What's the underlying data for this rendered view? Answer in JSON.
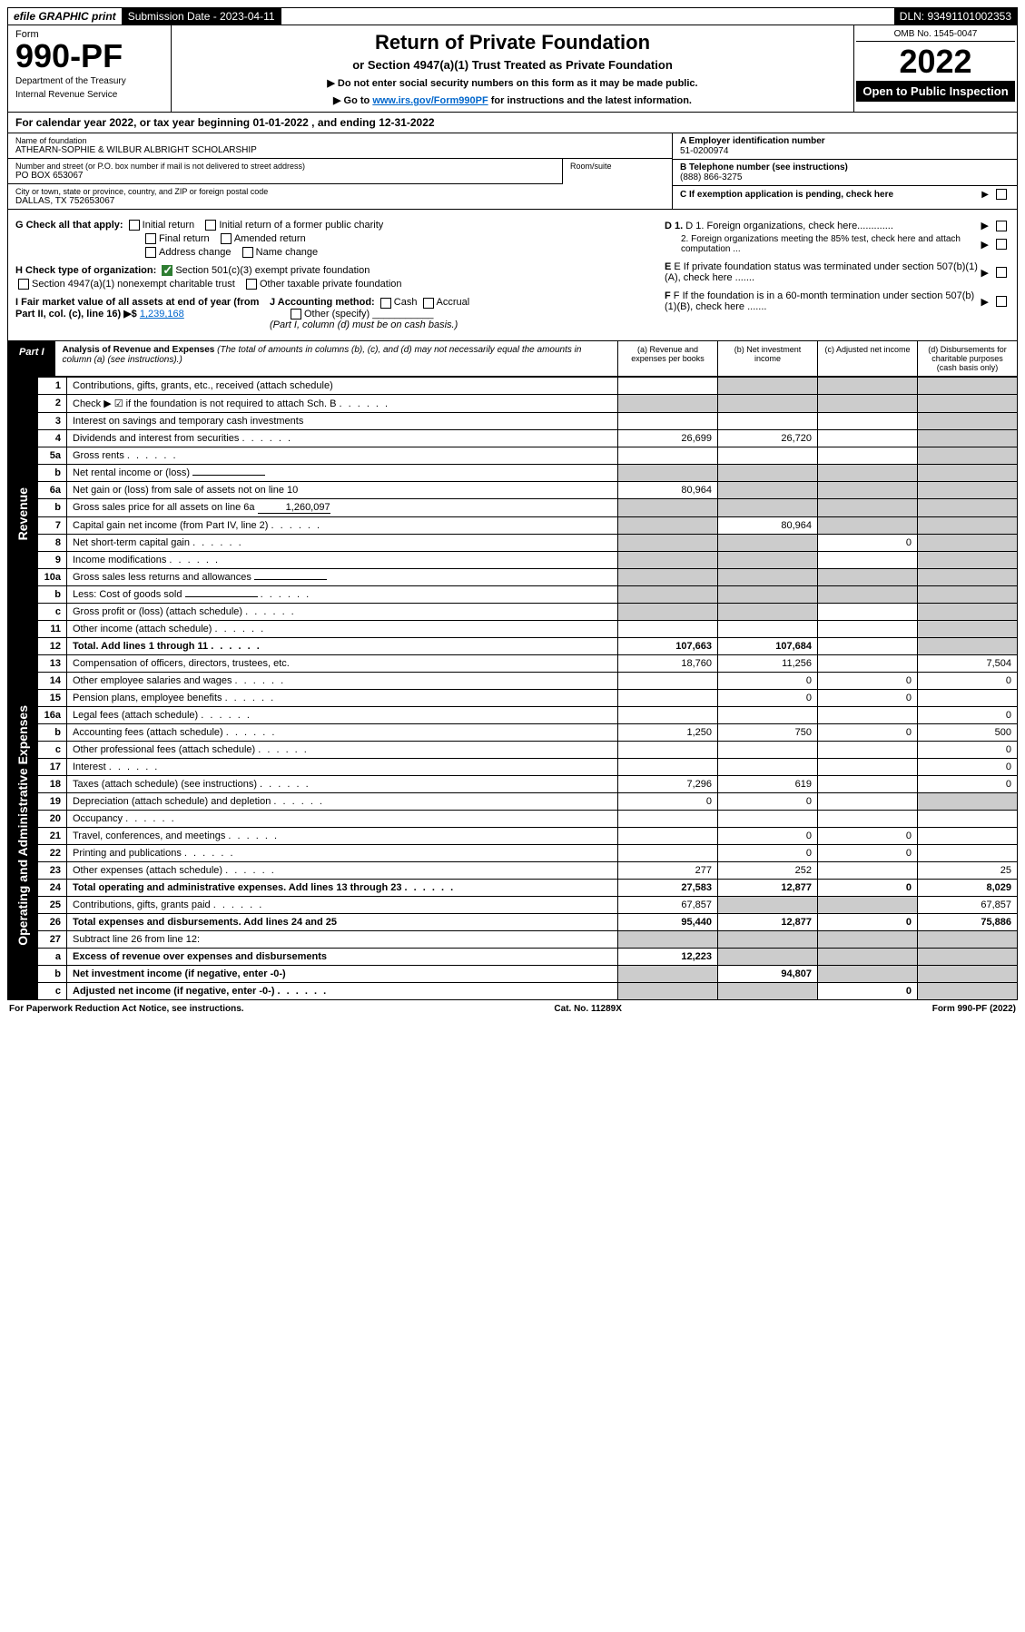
{
  "topbar": {
    "efile_label": "efile GRAPHIC print",
    "submission_label": "Submission Date - 2023-04-11",
    "dln_label": "DLN: 93491101002353"
  },
  "header": {
    "form_word": "Form",
    "form_number": "990-PF",
    "dept1": "Department of the Treasury",
    "dept2": "Internal Revenue Service",
    "title": "Return of Private Foundation",
    "subtitle": "or Section 4947(a)(1) Trust Treated as Private Foundation",
    "instr1": "▶ Do not enter social security numbers on this form as it may be made public.",
    "instr2_pre": "▶ Go to ",
    "instr2_link": "www.irs.gov/Form990PF",
    "instr2_post": " for instructions and the latest information.",
    "omb": "OMB No. 1545-0047",
    "year": "2022",
    "open_pub": "Open to Public Inspection"
  },
  "cal": {
    "text_pre": "For calendar year 2022, or tax year beginning ",
    "begin": "01-01-2022",
    "text_mid": " , and ending ",
    "end": "12-31-2022"
  },
  "info": {
    "name_lbl": "Name of foundation",
    "name_val": "ATHEARN-SOPHIE & WILBUR ALBRIGHT SCHOLARSHIP",
    "addr_lbl": "Number and street (or P.O. box number if mail is not delivered to street address)",
    "addr_val": "PO BOX 653067",
    "room_lbl": "Room/suite",
    "city_lbl": "City or town, state or province, country, and ZIP or foreign postal code",
    "city_val": "DALLAS, TX  752653067",
    "a_lbl": "A Employer identification number",
    "a_val": "51-0200974",
    "b_lbl": "B Telephone number (see instructions)",
    "b_val": "(888) 866-3275",
    "c_lbl": "C If exemption application is pending, check here",
    "d1_lbl": "D 1. Foreign organizations, check here.............",
    "d2_lbl": "2. Foreign organizations meeting the 85% test, check here and attach computation ...",
    "e_lbl": "E If private foundation status was terminated under section 507(b)(1)(A), check here .......",
    "f_lbl": "F If the foundation is in a 60-month termination under section 507(b)(1)(B), check here .......",
    "g_lbl": "G Check all that apply:",
    "g_opts": [
      "Initial return",
      "Initial return of a former public charity",
      "Final return",
      "Amended return",
      "Address change",
      "Name change"
    ],
    "h_lbl": "H Check type of organization:",
    "h_opt1": "Section 501(c)(3) exempt private foundation",
    "h_opt2": "Section 4947(a)(1) nonexempt charitable trust",
    "h_opt3": "Other taxable private foundation",
    "i_lbl": "I Fair market value of all assets at end of year (from Part II, col. (c), line 16) ▶$",
    "i_val": "1,239,168",
    "j_lbl": "J Accounting method:",
    "j_opts": [
      "Cash",
      "Accrual"
    ],
    "j_other": "Other (specify)",
    "j_note": "(Part I, column (d) must be on cash basis.)"
  },
  "part1": {
    "label": "Part I",
    "title": "Analysis of Revenue and Expenses",
    "title_note": " (The total of amounts in columns (b), (c), and (d) may not necessarily equal the amounts in column (a) (see instructions).)",
    "col_a": "(a) Revenue and expenses per books",
    "col_b": "(b) Net investment income",
    "col_c": "(c) Adjusted net income",
    "col_d": "(d) Disbursements for charitable purposes (cash basis only)"
  },
  "vlabels": {
    "revenue": "Revenue",
    "expenses": "Operating and Administrative Expenses"
  },
  "rows": [
    {
      "n": "1",
      "desc": "Contributions, gifts, grants, etc., received (attach schedule)",
      "a": "",
      "b": "shade",
      "c": "shade",
      "d": "shade"
    },
    {
      "n": "2",
      "desc": "Check ▶ ☑ if the foundation is not required to attach Sch. B",
      "a": "shade",
      "b": "shade",
      "c": "shade",
      "d": "shade",
      "dots": true
    },
    {
      "n": "3",
      "desc": "Interest on savings and temporary cash investments",
      "a": "",
      "b": "",
      "c": "",
      "d": "shade"
    },
    {
      "n": "4",
      "desc": "Dividends and interest from securities",
      "a": "26,699",
      "b": "26,720",
      "c": "",
      "d": "shade",
      "dots": true
    },
    {
      "n": "5a",
      "desc": "Gross rents",
      "a": "",
      "b": "",
      "c": "",
      "d": "shade",
      "dots": true
    },
    {
      "n": "b",
      "desc": "Net rental income or (loss)",
      "a": "shade",
      "b": "shade",
      "c": "shade",
      "d": "shade",
      "inline": true
    },
    {
      "n": "6a",
      "desc": "Net gain or (loss) from sale of assets not on line 10",
      "a": "80,964",
      "b": "shade",
      "c": "shade",
      "d": "shade"
    },
    {
      "n": "b",
      "desc": "Gross sales price for all assets on line 6a",
      "a": "shade",
      "b": "shade",
      "c": "shade",
      "d": "shade",
      "inline_val": "1,260,097"
    },
    {
      "n": "7",
      "desc": "Capital gain net income (from Part IV, line 2)",
      "a": "shade",
      "b": "80,964",
      "c": "shade",
      "d": "shade",
      "dots": true
    },
    {
      "n": "8",
      "desc": "Net short-term capital gain",
      "a": "shade",
      "b": "shade",
      "c": "0",
      "d": "shade",
      "dots": true
    },
    {
      "n": "9",
      "desc": "Income modifications",
      "a": "shade",
      "b": "shade",
      "c": "",
      "d": "shade",
      "dots": true
    },
    {
      "n": "10a",
      "desc": "Gross sales less returns and allowances",
      "a": "shade",
      "b": "shade",
      "c": "shade",
      "d": "shade",
      "inline": true
    },
    {
      "n": "b",
      "desc": "Less: Cost of goods sold",
      "a": "shade",
      "b": "shade",
      "c": "shade",
      "d": "shade",
      "inline": true,
      "dots": true
    },
    {
      "n": "c",
      "desc": "Gross profit or (loss) (attach schedule)",
      "a": "shade",
      "b": "shade",
      "c": "",
      "d": "shade",
      "dots": true
    },
    {
      "n": "11",
      "desc": "Other income (attach schedule)",
      "a": "",
      "b": "",
      "c": "",
      "d": "shade",
      "dots": true
    },
    {
      "n": "12",
      "desc": "Total. Add lines 1 through 11",
      "a": "107,663",
      "b": "107,684",
      "c": "",
      "d": "shade",
      "bold": true,
      "dots": true
    },
    {
      "n": "13",
      "desc": "Compensation of officers, directors, trustees, etc.",
      "a": "18,760",
      "b": "11,256",
      "c": "",
      "d": "7,504"
    },
    {
      "n": "14",
      "desc": "Other employee salaries and wages",
      "a": "",
      "b": "0",
      "c": "0",
      "d": "0",
      "dots": true
    },
    {
      "n": "15",
      "desc": "Pension plans, employee benefits",
      "a": "",
      "b": "0",
      "c": "0",
      "d": "",
      "dots": true
    },
    {
      "n": "16a",
      "desc": "Legal fees (attach schedule)",
      "a": "",
      "b": "",
      "c": "",
      "d": "0",
      "dots": true
    },
    {
      "n": "b",
      "desc": "Accounting fees (attach schedule)",
      "a": "1,250",
      "b": "750",
      "c": "0",
      "d": "500",
      "dots": true
    },
    {
      "n": "c",
      "desc": "Other professional fees (attach schedule)",
      "a": "",
      "b": "",
      "c": "",
      "d": "0",
      "dots": true
    },
    {
      "n": "17",
      "desc": "Interest",
      "a": "",
      "b": "",
      "c": "",
      "d": "0",
      "dots": true
    },
    {
      "n": "18",
      "desc": "Taxes (attach schedule) (see instructions)",
      "a": "7,296",
      "b": "619",
      "c": "",
      "d": "0",
      "dots": true
    },
    {
      "n": "19",
      "desc": "Depreciation (attach schedule) and depletion",
      "a": "0",
      "b": "0",
      "c": "",
      "d": "shade",
      "dots": true
    },
    {
      "n": "20",
      "desc": "Occupancy",
      "a": "",
      "b": "",
      "c": "",
      "d": "",
      "dots": true
    },
    {
      "n": "21",
      "desc": "Travel, conferences, and meetings",
      "a": "",
      "b": "0",
      "c": "0",
      "d": "",
      "dots": true
    },
    {
      "n": "22",
      "desc": "Printing and publications",
      "a": "",
      "b": "0",
      "c": "0",
      "d": "",
      "dots": true
    },
    {
      "n": "23",
      "desc": "Other expenses (attach schedule)",
      "a": "277",
      "b": "252",
      "c": "",
      "d": "25",
      "dots": true
    },
    {
      "n": "24",
      "desc": "Total operating and administrative expenses. Add lines 13 through 23",
      "a": "27,583",
      "b": "12,877",
      "c": "0",
      "d": "8,029",
      "bold": true,
      "dots": true
    },
    {
      "n": "25",
      "desc": "Contributions, gifts, grants paid",
      "a": "67,857",
      "b": "shade",
      "c": "shade",
      "d": "67,857",
      "dots": true
    },
    {
      "n": "26",
      "desc": "Total expenses and disbursements. Add lines 24 and 25",
      "a": "95,440",
      "b": "12,877",
      "c": "0",
      "d": "75,886",
      "bold": true
    },
    {
      "n": "27",
      "desc": "Subtract line 26 from line 12:",
      "a": "shade",
      "b": "shade",
      "c": "shade",
      "d": "shade"
    },
    {
      "n": "a",
      "desc": "Excess of revenue over expenses and disbursements",
      "a": "12,223",
      "b": "shade",
      "c": "shade",
      "d": "shade",
      "bold": true
    },
    {
      "n": "b",
      "desc": "Net investment income (if negative, enter -0-)",
      "a": "shade",
      "b": "94,807",
      "c": "shade",
      "d": "shade",
      "bold": true
    },
    {
      "n": "c",
      "desc": "Adjusted net income (if negative, enter -0-)",
      "a": "shade",
      "b": "shade",
      "c": "0",
      "d": "shade",
      "bold": true,
      "dots": true
    }
  ],
  "footer": {
    "left": "For Paperwork Reduction Act Notice, see instructions.",
    "mid": "Cat. No. 11289X",
    "right": "Form 990-PF (2022)"
  }
}
